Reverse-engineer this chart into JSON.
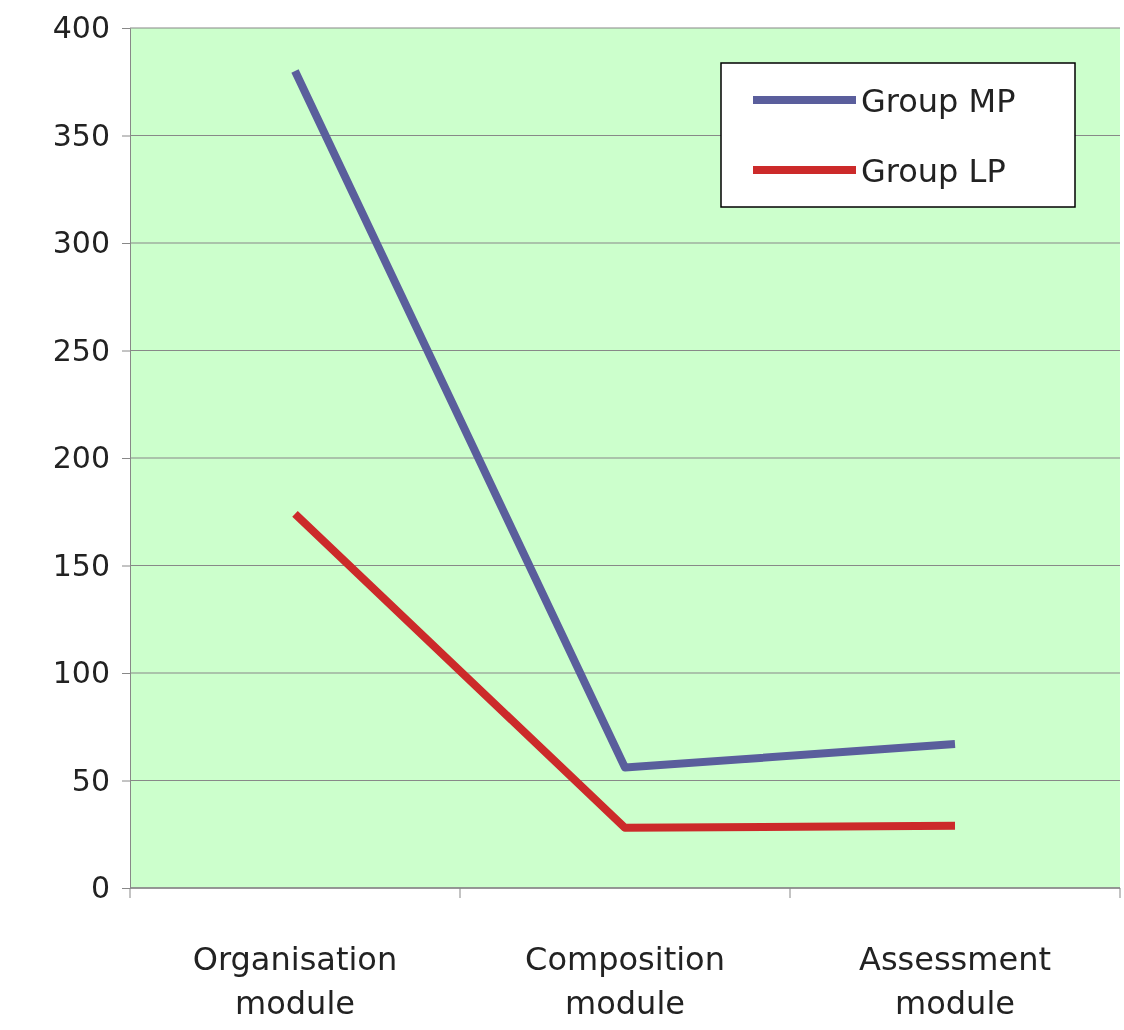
{
  "chart_data": {
    "type": "line",
    "categories": [
      "Organisation module",
      "Composition module",
      "Assessment module"
    ],
    "series": [
      {
        "name": "Group MP",
        "color": "#5a5e9c",
        "values": [
          380,
          56,
          67
        ]
      },
      {
        "name": "Group LP",
        "color": "#cc2a2a",
        "values": [
          174,
          28,
          29
        ]
      }
    ],
    "ylim": [
      0,
      400
    ],
    "yticks": [
      0,
      50,
      100,
      150,
      200,
      250,
      300,
      350,
      400
    ],
    "grid": "y",
    "legend": "top right",
    "marker": "none",
    "line_style": "solid"
  }
}
